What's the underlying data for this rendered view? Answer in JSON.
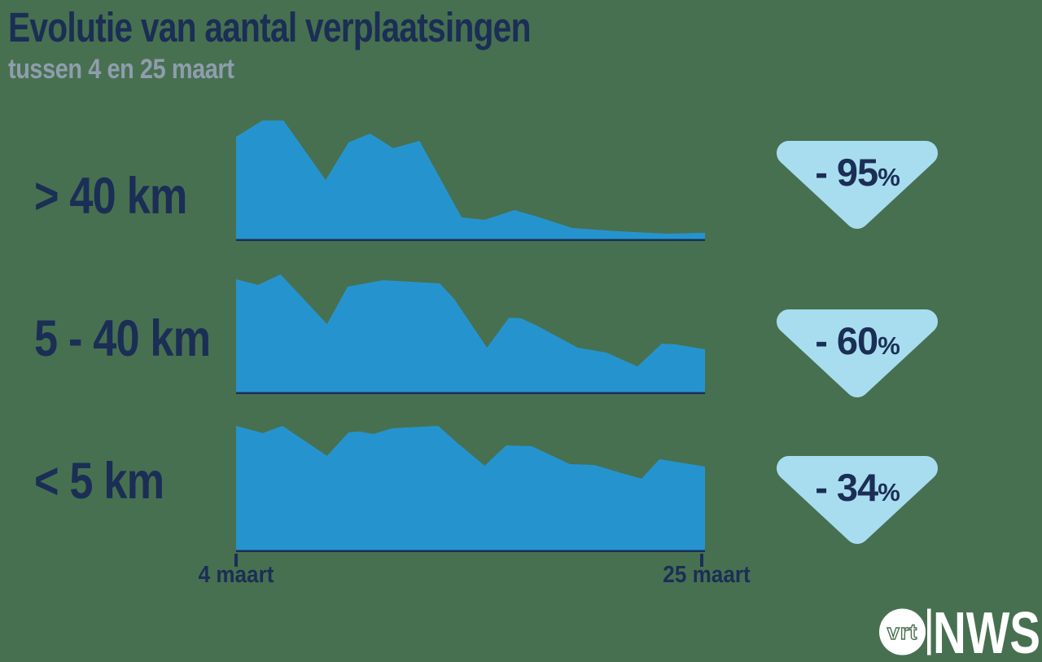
{
  "title": "Evolutie van aantal verplaatsingen",
  "subtitle": "tussen 4 en 25 maart",
  "colors": {
    "background": "#477050",
    "area": "#2594CE",
    "navy": "#1B2E55",
    "gray": "#8F9DAD",
    "badge": "#A8DDF0",
    "white": "#FFFFFF"
  },
  "x_axis": {
    "start_label": "4 maart",
    "end_label": "25 maart"
  },
  "logo": {
    "vrt": "vrt",
    "nws": "NWS"
  },
  "chart_data": {
    "type": "area",
    "title": "Evolutie van aantal verplaatsingen",
    "subtitle": "tussen 4 en 25 maart",
    "x_range_labels": [
      "4 maart",
      "25 maart"
    ],
    "point_format": "[x_fraction_of_timespan, height_pct_of_band_max]",
    "series": [
      {
        "name": "> 40 km",
        "change_pct": -95,
        "change_value": "- 95",
        "change_suffix": "%",
        "points": [
          [
            0.0,
            86.5
          ],
          [
            0.056,
            100
          ],
          [
            0.101,
            100
          ],
          [
            0.191,
            50.7
          ],
          [
            0.24,
            81.8
          ],
          [
            0.286,
            89.2
          ],
          [
            0.335,
            77.0
          ],
          [
            0.391,
            83.1
          ],
          [
            0.481,
            19.6
          ],
          [
            0.53,
            17.6
          ],
          [
            0.594,
            25.7
          ],
          [
            0.642,
            20.3
          ],
          [
            0.717,
            10.8
          ],
          [
            0.816,
            8.1
          ],
          [
            0.92,
            6.1
          ],
          [
            1.0,
            6.8
          ]
        ]
      },
      {
        "name": "5 - 40 km",
        "change_pct": -60,
        "change_value": "- 60",
        "change_suffix": "%",
        "points": [
          [
            0.0,
            95.9
          ],
          [
            0.047,
            91.2
          ],
          [
            0.095,
            100
          ],
          [
            0.194,
            58.5
          ],
          [
            0.238,
            89.8
          ],
          [
            0.313,
            95.2
          ],
          [
            0.434,
            92.5
          ],
          [
            0.465,
            79.6
          ],
          [
            0.535,
            38.8
          ],
          [
            0.582,
            63.9
          ],
          [
            0.608,
            63.3
          ],
          [
            0.642,
            57.1
          ],
          [
            0.729,
            38.8
          ],
          [
            0.79,
            34.7
          ],
          [
            0.856,
            23.1
          ],
          [
            0.908,
            42.2
          ],
          [
            0.938,
            41.5
          ],
          [
            1.0,
            37.4
          ]
        ]
      },
      {
        "name": "< 5 km",
        "change_pct": -34,
        "change_value": "- 34",
        "change_suffix": "%",
        "points": [
          [
            0.0,
            96.9
          ],
          [
            0.057,
            91.3
          ],
          [
            0.099,
            96.9
          ],
          [
            0.194,
            73.8
          ],
          [
            0.24,
            91.9
          ],
          [
            0.264,
            92.5
          ],
          [
            0.292,
            90.6
          ],
          [
            0.333,
            95.0
          ],
          [
            0.431,
            96.9
          ],
          [
            0.474,
            83.1
          ],
          [
            0.53,
            66.3
          ],
          [
            0.576,
            81.9
          ],
          [
            0.63,
            81.3
          ],
          [
            0.712,
            67.5
          ],
          [
            0.764,
            66.9
          ],
          [
            0.828,
            60.0
          ],
          [
            0.865,
            56.3
          ],
          [
            0.903,
            71.3
          ],
          [
            0.925,
            70.0
          ],
          [
            1.0,
            65.6
          ]
        ]
      }
    ]
  }
}
